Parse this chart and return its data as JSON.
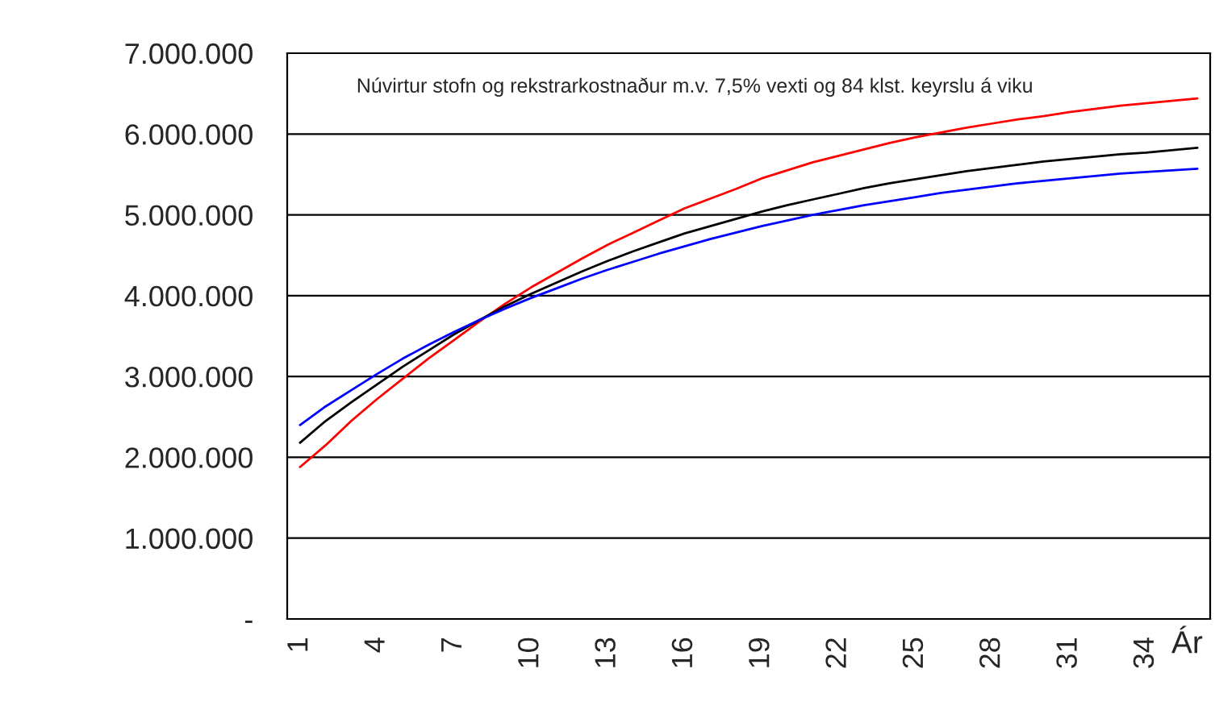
{
  "chart_data": {
    "type": "line",
    "title": "Núvirtur stofn og rekstrarkostnaður m.v. 7,5% vexti og 84 klst. keyrslu á viku",
    "xlabel": "Ár",
    "categories": [
      "1",
      null,
      null,
      "4",
      null,
      null,
      "7",
      null,
      null,
      "10",
      null,
      null,
      "13",
      null,
      null,
      "16",
      null,
      null,
      "19",
      null,
      null,
      "22",
      null,
      null,
      "25",
      null,
      null,
      "28",
      null,
      null,
      "31",
      null,
      null,
      "34",
      null,
      null
    ],
    "series": [
      {
        "color": "#ff0000",
        "values": [
          1880000,
          2150000,
          2450000,
          2720000,
          2970000,
          3220000,
          3450000,
          3680000,
          3900000,
          4100000,
          4280000,
          4460000,
          4630000,
          4780000,
          4930000,
          5080000,
          5200000,
          5320000,
          5450000,
          5550000,
          5650000,
          5730000,
          5810000,
          5890000,
          5960000,
          6020000,
          6080000,
          6130000,
          6180000,
          6220000,
          6270000,
          6310000,
          6350000,
          6380000,
          6410000,
          6440000
        ]
      },
      {
        "color": "#000000",
        "values": [
          2180000,
          2450000,
          2680000,
          2900000,
          3120000,
          3320000,
          3520000,
          3700000,
          3870000,
          4020000,
          4160000,
          4300000,
          4430000,
          4550000,
          4660000,
          4770000,
          4860000,
          4950000,
          5040000,
          5120000,
          5190000,
          5260000,
          5330000,
          5390000,
          5440000,
          5490000,
          5540000,
          5580000,
          5620000,
          5660000,
          5690000,
          5720000,
          5750000,
          5770000,
          5800000,
          5830000
        ]
      },
      {
        "color": "#0000ff",
        "values": [
          2400000,
          2630000,
          2830000,
          3030000,
          3220000,
          3390000,
          3550000,
          3700000,
          3840000,
          3970000,
          4090000,
          4210000,
          4320000,
          4420000,
          4520000,
          4610000,
          4700000,
          4780000,
          4860000,
          4930000,
          5000000,
          5060000,
          5120000,
          5170000,
          5220000,
          5270000,
          5310000,
          5350000,
          5390000,
          5420000,
          5450000,
          5480000,
          5510000,
          5530000,
          5550000,
          5570000
        ]
      }
    ],
    "ylim": [
      0,
      7000000
    ],
    "yticks": [
      {
        "value": 0,
        "label": "-"
      },
      {
        "value": 1000000,
        "label": "1.000.000"
      },
      {
        "value": 2000000,
        "label": "2.000.000"
      },
      {
        "value": 3000000,
        "label": "3.000.000"
      },
      {
        "value": 4000000,
        "label": "4.000.000"
      },
      {
        "value": 5000000,
        "label": "5.000.000"
      },
      {
        "value": 6000000,
        "label": "6.000.000"
      },
      {
        "value": 7000000,
        "label": "7.000.000"
      }
    ],
    "grid": "y",
    "legend": false,
    "marker": "none",
    "line_style": "solid"
  }
}
